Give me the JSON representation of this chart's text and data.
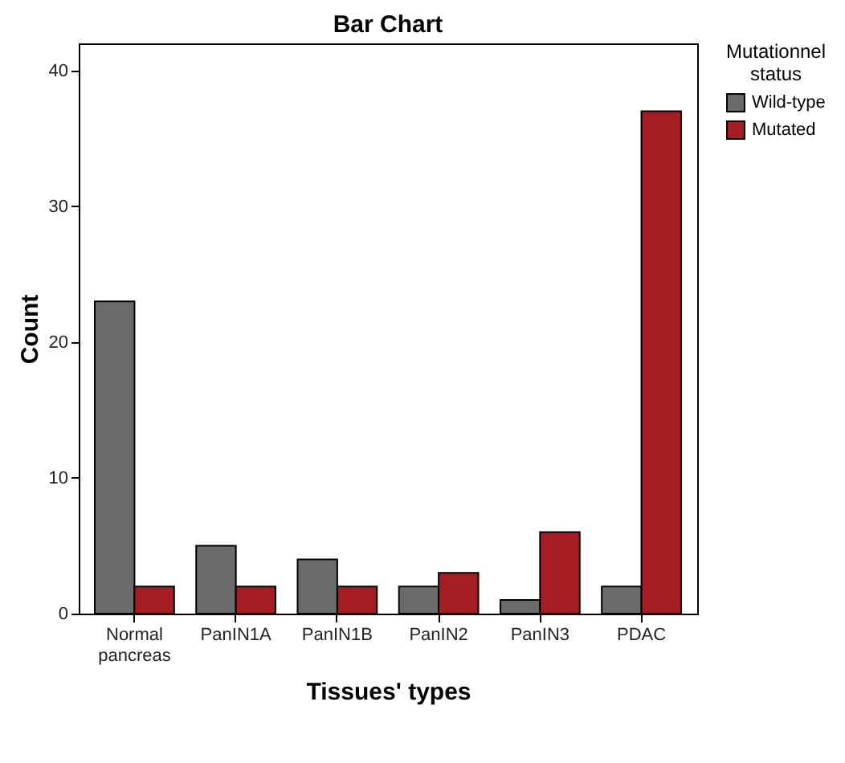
{
  "chart_data": {
    "type": "bar",
    "title": "Bar Chart",
    "xlabel": "Tissues' types",
    "ylabel": "Count",
    "legend_title": "Mutationnel status",
    "categories": [
      "Normal pancreas",
      "PanIN1A",
      "PanIN1B",
      "PanIN2",
      "PanIN3",
      "PDAC"
    ],
    "series": [
      {
        "name": "Wild-type",
        "color": "#6b6b6b",
        "values": [
          23,
          5,
          4,
          2,
          1,
          2
        ]
      },
      {
        "name": "Mutated",
        "color": "#a51d23",
        "values": [
          2,
          2,
          2,
          3,
          6,
          37
        ]
      }
    ],
    "ylim": [
      0,
      42
    ],
    "yticks": [
      0,
      10,
      20,
      30,
      40
    ],
    "grid": false,
    "legend": "top right"
  }
}
